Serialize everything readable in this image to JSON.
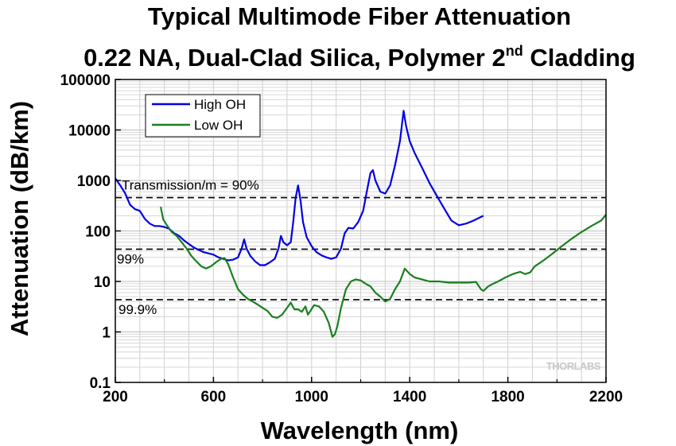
{
  "chart_data": {
    "type": "line",
    "title": {
      "line1": "Typical Multimode Fiber Attenuation",
      "line2_main": "0.22 NA, Dual-Clad Silica, Polymer 2",
      "line2_sup": "nd",
      "line2_tail": " Cladding"
    },
    "xlabel": "Wavelength (nm)",
    "ylabel": "Attenuation (dB/km)",
    "xlim": [
      200,
      2200
    ],
    "ylim": [
      0.1,
      100000
    ],
    "yscale": "log",
    "grid": true,
    "legend_position": "top-left",
    "x_ticks": [
      {
        "value": 200,
        "label": "200"
      },
      {
        "value": 600,
        "label": "600"
      },
      {
        "value": 1000,
        "label": "1000"
      },
      {
        "value": 1400,
        "label": "1400"
      },
      {
        "value": 1800,
        "label": "1800"
      },
      {
        "value": 2200,
        "label": "2200"
      }
    ],
    "y_ticks": [
      {
        "value": 0.1,
        "label": "0.1"
      },
      {
        "value": 1,
        "label": "1"
      },
      {
        "value": 10,
        "label": "10"
      },
      {
        "value": 100,
        "label": "100"
      },
      {
        "value": 1000,
        "label": "1000"
      },
      {
        "value": 10000,
        "label": "10000"
      },
      {
        "value": 100000,
        "label": "100000"
      }
    ],
    "reference_lines": [
      {
        "value": 458,
        "label": "Transmission/m = 90%"
      },
      {
        "value": 43.6,
        "label": "99%"
      },
      {
        "value": 4.35,
        "label": "99.9%"
      }
    ],
    "series": [
      {
        "name": "High OH",
        "color": "#0000e6",
        "points": [
          [
            200,
            1100
          ],
          [
            220,
            800
          ],
          [
            240,
            560
          ],
          [
            260,
            330
          ],
          [
            280,
            270
          ],
          [
            300,
            250
          ],
          [
            320,
            175
          ],
          [
            340,
            140
          ],
          [
            360,
            125
          ],
          [
            380,
            125
          ],
          [
            400,
            120
          ],
          [
            420,
            110
          ],
          [
            440,
            90
          ],
          [
            460,
            80
          ],
          [
            480,
            65
          ],
          [
            500,
            55
          ],
          [
            520,
            47
          ],
          [
            540,
            42
          ],
          [
            560,
            38
          ],
          [
            580,
            36
          ],
          [
            600,
            34
          ],
          [
            620,
            30
          ],
          [
            640,
            28
          ],
          [
            660,
            26
          ],
          [
            680,
            27
          ],
          [
            700,
            30
          ],
          [
            715,
            45
          ],
          [
            725,
            68
          ],
          [
            735,
            45
          ],
          [
            750,
            32
          ],
          [
            770,
            25
          ],
          [
            790,
            21
          ],
          [
            810,
            21
          ],
          [
            830,
            24
          ],
          [
            850,
            28
          ],
          [
            865,
            45
          ],
          [
            875,
            80
          ],
          [
            885,
            60
          ],
          [
            900,
            52
          ],
          [
            915,
            60
          ],
          [
            925,
            150
          ],
          [
            935,
            450
          ],
          [
            945,
            800
          ],
          [
            955,
            400
          ],
          [
            965,
            150
          ],
          [
            980,
            75
          ],
          [
            1000,
            50
          ],
          [
            1020,
            38
          ],
          [
            1040,
            33
          ],
          [
            1060,
            30
          ],
          [
            1080,
            28
          ],
          [
            1100,
            30
          ],
          [
            1120,
            45
          ],
          [
            1135,
            90
          ],
          [
            1150,
            115
          ],
          [
            1170,
            112
          ],
          [
            1190,
            150
          ],
          [
            1210,
            250
          ],
          [
            1225,
            600
          ],
          [
            1240,
            1400
          ],
          [
            1250,
            1600
          ],
          [
            1260,
            1000
          ],
          [
            1280,
            600
          ],
          [
            1300,
            550
          ],
          [
            1320,
            800
          ],
          [
            1340,
            2000
          ],
          [
            1360,
            6000
          ],
          [
            1375,
            24000
          ],
          [
            1385,
            12000
          ],
          [
            1400,
            6000
          ],
          [
            1420,
            3500
          ],
          [
            1450,
            1800
          ],
          [
            1480,
            900
          ],
          [
            1510,
            500
          ],
          [
            1540,
            280
          ],
          [
            1570,
            160
          ],
          [
            1600,
            130
          ],
          [
            1630,
            140
          ],
          [
            1660,
            160
          ],
          [
            1700,
            200
          ]
        ]
      },
      {
        "name": "Low OH",
        "color": "#1a8020",
        "points": [
          [
            385,
            300
          ],
          [
            395,
            170
          ],
          [
            410,
            130
          ],
          [
            430,
            95
          ],
          [
            450,
            80
          ],
          [
            470,
            60
          ],
          [
            490,
            45
          ],
          [
            510,
            32
          ],
          [
            530,
            25
          ],
          [
            550,
            20
          ],
          [
            570,
            18
          ],
          [
            590,
            20
          ],
          [
            610,
            24
          ],
          [
            630,
            28
          ],
          [
            645,
            29
          ],
          [
            660,
            22
          ],
          [
            680,
            12
          ],
          [
            700,
            7
          ],
          [
            720,
            5.5
          ],
          [
            740,
            4.5
          ],
          [
            760,
            4
          ],
          [
            780,
            3.5
          ],
          [
            800,
            3
          ],
          [
            820,
            2.6
          ],
          [
            840,
            2
          ],
          [
            860,
            1.9
          ],
          [
            880,
            2.2
          ],
          [
            900,
            3
          ],
          [
            915,
            3.8
          ],
          [
            930,
            2.8
          ],
          [
            945,
            2.8
          ],
          [
            960,
            2.5
          ],
          [
            975,
            3.2
          ],
          [
            985,
            2.2
          ],
          [
            995,
            2.6
          ],
          [
            1010,
            3.4
          ],
          [
            1030,
            3.2
          ],
          [
            1050,
            2.5
          ],
          [
            1070,
            1.5
          ],
          [
            1085,
            0.8
          ],
          [
            1095,
            0.9
          ],
          [
            1105,
            1.3
          ],
          [
            1120,
            3
          ],
          [
            1140,
            7
          ],
          [
            1160,
            10
          ],
          [
            1180,
            11
          ],
          [
            1200,
            10.5
          ],
          [
            1220,
            9
          ],
          [
            1240,
            8
          ],
          [
            1260,
            6
          ],
          [
            1280,
            5
          ],
          [
            1300,
            4
          ],
          [
            1320,
            4.5
          ],
          [
            1340,
            7
          ],
          [
            1360,
            10
          ],
          [
            1380,
            18
          ],
          [
            1400,
            14
          ],
          [
            1420,
            12
          ],
          [
            1450,
            11
          ],
          [
            1480,
            10
          ],
          [
            1520,
            10
          ],
          [
            1560,
            9.5
          ],
          [
            1600,
            9.5
          ],
          [
            1640,
            9.5
          ],
          [
            1670,
            9.8
          ],
          [
            1690,
            7
          ],
          [
            1700,
            6.5
          ],
          [
            1720,
            8
          ],
          [
            1740,
            9
          ],
          [
            1760,
            10
          ],
          [
            1790,
            12
          ],
          [
            1820,
            14
          ],
          [
            1850,
            15.5
          ],
          [
            1870,
            14
          ],
          [
            1890,
            15
          ],
          [
            1910,
            20
          ],
          [
            1940,
            25
          ],
          [
            1980,
            35
          ],
          [
            2020,
            50
          ],
          [
            2060,
            70
          ],
          [
            2100,
            95
          ],
          [
            2140,
            125
          ],
          [
            2180,
            160
          ],
          [
            2200,
            210
          ]
        ]
      }
    ]
  },
  "watermark": "THORLABS"
}
